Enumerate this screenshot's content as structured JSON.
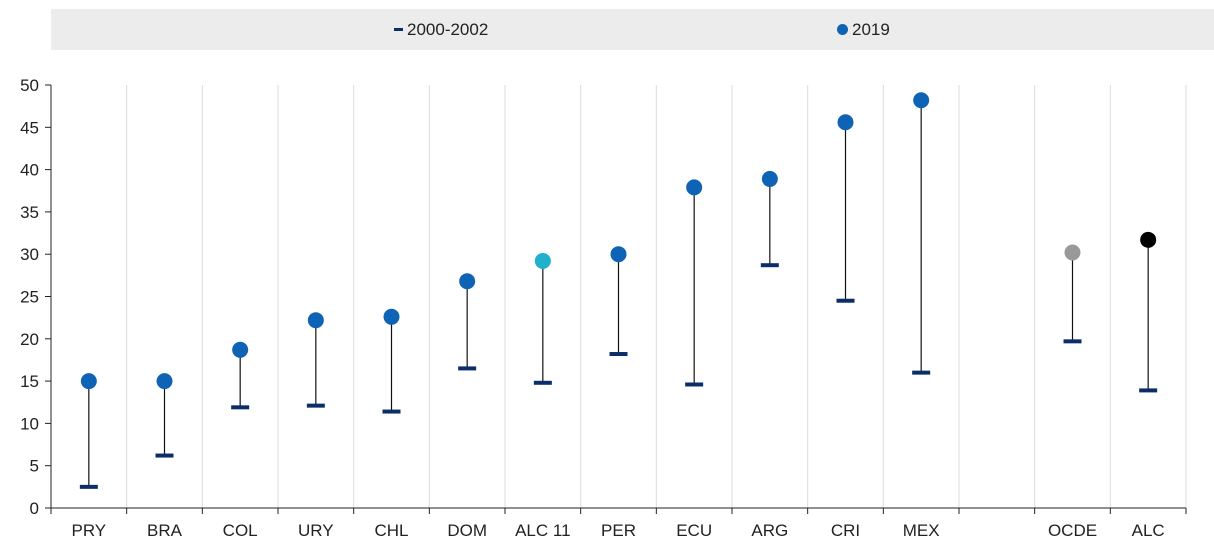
{
  "legend": {
    "items": [
      {
        "label": "2000-2002",
        "symbol": "dash",
        "color": "#0b2e6b"
      },
      {
        "label": "2019",
        "symbol": "dot",
        "color": "#0f63b4"
      }
    ]
  },
  "chart_data": {
    "type": "dumbbell",
    "title": "",
    "xlabel": "",
    "ylabel": "",
    "ylim": [
      0,
      50
    ],
    "yticks": [
      0,
      5,
      10,
      15,
      20,
      25,
      30,
      35,
      40,
      45,
      50
    ],
    "grid": "vertical",
    "legend_position": "top",
    "categories": [
      "PRY",
      "BRA",
      "COL",
      "URY",
      "CHL",
      "DOM",
      "ALC 11",
      "PER",
      "ECU",
      "ARG",
      "CRI",
      "MEX",
      "",
      "OCDE",
      "ALC"
    ],
    "series": [
      {
        "name": "2000-2002",
        "marker": "dash",
        "color": "#0b2e6b",
        "values": [
          2.5,
          6.2,
          11.9,
          12.1,
          11.4,
          16.5,
          14.8,
          18.2,
          14.6,
          28.7,
          24.5,
          16.0,
          null,
          19.7,
          13.9
        ]
      },
      {
        "name": "2019",
        "marker": "dot",
        "color": "#0f63b4",
        "values": [
          15.0,
          15.0,
          18.7,
          22.2,
          22.6,
          26.8,
          29.2,
          30.0,
          37.9,
          38.9,
          45.6,
          48.2,
          null,
          30.2,
          31.7
        ]
      }
    ],
    "point_colors_2019": [
      "#0f63b4",
      "#0f63b4",
      "#0f63b4",
      "#0f63b4",
      "#0f63b4",
      "#0f63b4",
      "#1fb1cc",
      "#0f63b4",
      "#0f63b4",
      "#0f63b4",
      "#0f63b4",
      "#0f63b4",
      null,
      "#999999",
      "#000000"
    ]
  }
}
